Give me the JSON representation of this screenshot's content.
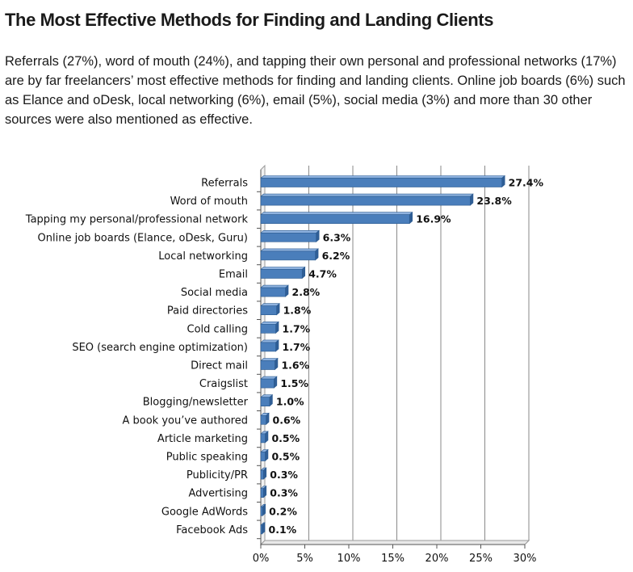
{
  "heading": "The Most Effective Methods for Finding and Landing Clients",
  "intro": "Referrals (27%), word of mouth (24%), and tapping their own personal and professional networks (17%) are by far freelancers’ most effective methods for finding and landing clients. Online job boards (6%) such as Elance and oDesk, local networking (6%), email (5%), social media (3%) and more than 30 other sources were also mentioned as effective.",
  "chart_data": {
    "type": "bar",
    "orientation": "horizontal",
    "title": "",
    "xlabel": "",
    "ylabel": "",
    "categories": [
      "Referrals",
      "Word of mouth",
      "Tapping my personal/professional network",
      "Online job boards (Elance, oDesk, Guru)",
      "Local networking",
      "Email",
      "Social media",
      "Paid directories",
      "Cold calling",
      "SEO (search engine optimization)",
      "Direct mail",
      "Craigslist",
      "Blogging/newsletter",
      "A book you’ve authored",
      "Article marketing",
      "Public speaking",
      "Publicity/PR",
      "Advertising",
      "Google AdWords",
      "Facebook Ads"
    ],
    "values": [
      27.4,
      23.8,
      16.9,
      6.3,
      6.2,
      4.7,
      2.8,
      1.8,
      1.7,
      1.7,
      1.6,
      1.5,
      1.0,
      0.6,
      0.5,
      0.5,
      0.3,
      0.3,
      0.2,
      0.1
    ],
    "value_labels": [
      "27.4%",
      "23.8%",
      "16.9%",
      "6.3%",
      "6.2%",
      "4.7%",
      "2.8%",
      "1.8%",
      "1.7%",
      "1.7%",
      "1.6%",
      "1.5%",
      "1.0%",
      "0.6%",
      "0.5%",
      "0.5%",
      "0.3%",
      "0.3%",
      "0.2%",
      "0.1%"
    ],
    "xlim": [
      0,
      30
    ],
    "xticks": [
      0,
      5,
      10,
      15,
      20,
      25,
      30
    ],
    "xtick_labels": [
      "0%",
      "5%",
      "10%",
      "15%",
      "20%",
      "25%",
      "30%"
    ],
    "grid": true,
    "bar_color": "#4a7ebb",
    "bar_edge_color": "#2b5a8f"
  }
}
